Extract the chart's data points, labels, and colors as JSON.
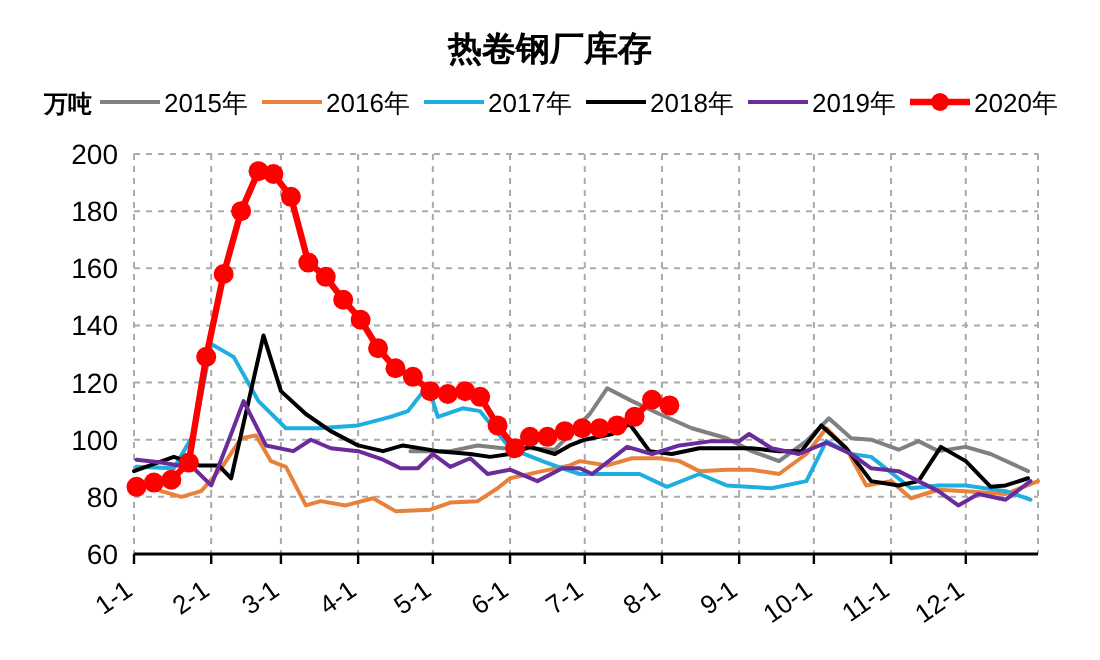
{
  "chart_data": {
    "type": "line",
    "title": "热卷钢厂库存",
    "ylabel": "万吨",
    "legend": "top",
    "grid": true,
    "line_style": "solid",
    "xlim": [
      "--01-01",
      "--12-30"
    ],
    "ylim": [
      60,
      200
    ],
    "xticks": [
      {
        "value": "--01-01",
        "label": "1-1"
      },
      {
        "value": "--02-01",
        "label": "2-1"
      },
      {
        "value": "--03-01",
        "label": "3-1"
      },
      {
        "value": "--04-01",
        "label": "4-1"
      },
      {
        "value": "--05-01",
        "label": "5-1"
      },
      {
        "value": "--06-01",
        "label": "6-1"
      },
      {
        "value": "--07-01",
        "label": "7-1"
      },
      {
        "value": "--08-01",
        "label": "8-1"
      },
      {
        "value": "--09-01",
        "label": "9-1"
      },
      {
        "value": "--10-01",
        "label": "10-1"
      },
      {
        "value": "--11-01",
        "label": "11-1"
      },
      {
        "value": "--12-01",
        "label": "12-1"
      }
    ],
    "yticks": [
      60,
      80,
      100,
      120,
      140,
      160,
      180,
      200
    ],
    "series": [
      {
        "name": "2015年",
        "color": "#808080",
        "marker": "none",
        "x": [
          "--04-22",
          "--05-08",
          "--05-19",
          "--05-29",
          "--06-09",
          "--06-19",
          "--07-03",
          "--07-10",
          "--07-20",
          "--07-31",
          "--08-13",
          "--08-27",
          "--09-06",
          "--09-17",
          "--09-28",
          "--10-07",
          "--10-16",
          "--10-24",
          "--11-04",
          "--11-12",
          "--11-20",
          "--12-01",
          "--12-11",
          "--12-26"
        ],
        "values": [
          96,
          96,
          98,
          97,
          97,
          96.5,
          109,
          118,
          113.5,
          109,
          104,
          100.5,
          96,
          92.5,
          99.5,
          107.5,
          100.5,
          100,
          96.5,
          99.5,
          96,
          97.5,
          95,
          89
        ]
      },
      {
        "name": "2016年",
        "color": "#e8823a",
        "marker": "none",
        "x": [
          "--01-02",
          "--01-12",
          "--01-20",
          "--01-28",
          "--02-05",
          "--02-13",
          "--02-19",
          "--02-25",
          "--03-03",
          "--03-11",
          "--03-17",
          "--03-27",
          "--04-07",
          "--04-16",
          "--04-30",
          "--05-08",
          "--05-19",
          "--05-27",
          "--06-01",
          "--06-14",
          "--06-25",
          "--06-29",
          "--07-10",
          "--07-20",
          "--07-31",
          "--08-08",
          "--08-16",
          "--08-27",
          "--09-06",
          "--09-17",
          "--09-28",
          "--10-06",
          "--10-14",
          "--10-22",
          "--11-01",
          "--11-09",
          "--11-20",
          "--12-01",
          "--12-17",
          "--12-30"
        ],
        "values": [
          85,
          82,
          80,
          82,
          90,
          100.5,
          101.5,
          92.5,
          90.5,
          77,
          78.5,
          77,
          79.5,
          75,
          75.5,
          78,
          78.5,
          83,
          86.5,
          89,
          91,
          92.5,
          91,
          93.5,
          93.5,
          92.5,
          89,
          89.5,
          89.5,
          88,
          95,
          104,
          97,
          84,
          85.5,
          79.5,
          82.5,
          82,
          81,
          85.5
        ]
      },
      {
        "name": "2017年",
        "color": "#1eaee0",
        "marker": "none",
        "x": [
          "--01-02",
          "--01-17",
          "--01-25",
          "--02-01",
          "--02-10",
          "--02-20",
          "--03-03",
          "--03-16",
          "--04-01",
          "--04-14",
          "--04-21",
          "--04-29",
          "--05-03",
          "--05-13",
          "--05-20",
          "--06-01",
          "--06-14",
          "--06-22",
          "--06-29",
          "--07-12",
          "--07-23",
          "--08-03",
          "--08-16",
          "--08-27",
          "--09-14",
          "--09-28",
          "--10-06",
          "--10-16",
          "--10-24",
          "--11-09",
          "--11-20",
          "--12-01",
          "--12-17",
          "--12-27"
        ],
        "values": [
          90.5,
          90,
          102,
          133.5,
          129,
          113.5,
          104,
          104,
          105,
          108,
          110,
          119,
          108,
          111,
          110,
          97,
          92.5,
          90,
          88,
          88,
          88,
          83.5,
          88,
          84,
          83,
          85.5,
          99.5,
          95,
          94,
          83,
          84,
          84,
          82,
          79
        ]
      },
      {
        "name": "2018年",
        "color": "#000000",
        "marker": "none",
        "x": [
          "--01-01",
          "--01-17",
          "--01-27",
          "--02-04",
          "--02-09",
          "--02-22",
          "--03-01",
          "--03-11",
          "--03-21",
          "--04-01",
          "--04-11",
          "--04-19",
          "--05-03",
          "--05-16",
          "--05-24",
          "--06-01",
          "--06-09",
          "--06-19",
          "--06-25",
          "--07-01",
          "--07-12",
          "--07-19",
          "--07-27",
          "--08-05",
          "--08-16",
          "--08-27",
          "--09-06",
          "--09-17",
          "--09-26",
          "--10-04",
          "--10-14",
          "--10-24",
          "--11-04",
          "--11-12",
          "--11-21",
          "--12-01",
          "--12-11",
          "--12-17",
          "--12-26"
        ],
        "values": [
          89,
          94,
          91,
          91,
          86.5,
          136.5,
          117,
          109,
          103,
          98,
          96,
          98,
          96,
          95,
          94,
          95,
          97.5,
          95,
          98,
          100,
          102,
          105.5,
          96,
          95,
          97,
          97,
          97,
          96,
          96,
          105,
          97,
          85.5,
          84,
          85.5,
          97.5,
          92.5,
          83.5,
          84,
          86.5
        ]
      },
      {
        "name": "2019年",
        "color": "#6a2c9a",
        "marker": "none",
        "x": [
          "--01-02",
          "--01-12",
          "--01-25",
          "--02-01",
          "--02-09",
          "--02-14",
          "--02-23",
          "--03-06",
          "--03-13",
          "--03-21",
          "--04-01",
          "--04-11",
          "--04-18",
          "--04-25",
          "--05-01",
          "--05-08",
          "--05-16",
          "--05-23",
          "--06-01",
          "--06-12",
          "--06-22",
          "--06-29",
          "--07-04",
          "--07-18",
          "--07-28",
          "--08-08",
          "--08-21",
          "--09-01",
          "--09-05",
          "--09-14",
          "--09-25",
          "--10-06",
          "--10-16",
          "--10-24",
          "--11-04",
          "--11-12",
          "--11-20",
          "--11-28",
          "--12-06",
          "--12-17",
          "--12-27"
        ],
        "values": [
          93,
          92,
          90,
          84,
          102,
          113.5,
          98,
          96,
          100,
          97,
          96,
          93,
          90,
          90,
          95,
          90.5,
          93.5,
          88,
          89.5,
          85.5,
          90,
          90,
          88,
          97.5,
          95,
          98,
          99.5,
          99.5,
          102,
          97,
          95,
          99,
          95,
          90,
          89,
          85.5,
          82,
          77,
          81,
          79,
          85.5
        ]
      },
      {
        "name": "2020年",
        "color": "#ff0000",
        "marker": "circle",
        "x": [
          "--01-02",
          "--01-09",
          "--01-16",
          "--01-23",
          "--01-30",
          "--02-06",
          "--02-13",
          "--02-20",
          "--02-26",
          "--03-05",
          "--03-12",
          "--03-19",
          "--03-26",
          "--04-02",
          "--04-09",
          "--04-16",
          "--04-23",
          "--04-30",
          "--05-07",
          "--05-14",
          "--05-20",
          "--05-27",
          "--06-03",
          "--06-09",
          "--06-16",
          "--06-23",
          "--06-30",
          "--07-07",
          "--07-14",
          "--07-21",
          "--07-28",
          "--08-04"
        ],
        "values": [
          83.5,
          85,
          86,
          92,
          129,
          158,
          180,
          194,
          193,
          185,
          162,
          157,
          149,
          142,
          132,
          125,
          122,
          117,
          116,
          117,
          115,
          105,
          97,
          101,
          101,
          103,
          104,
          104,
          105,
          108,
          114,
          112
        ]
      }
    ]
  }
}
